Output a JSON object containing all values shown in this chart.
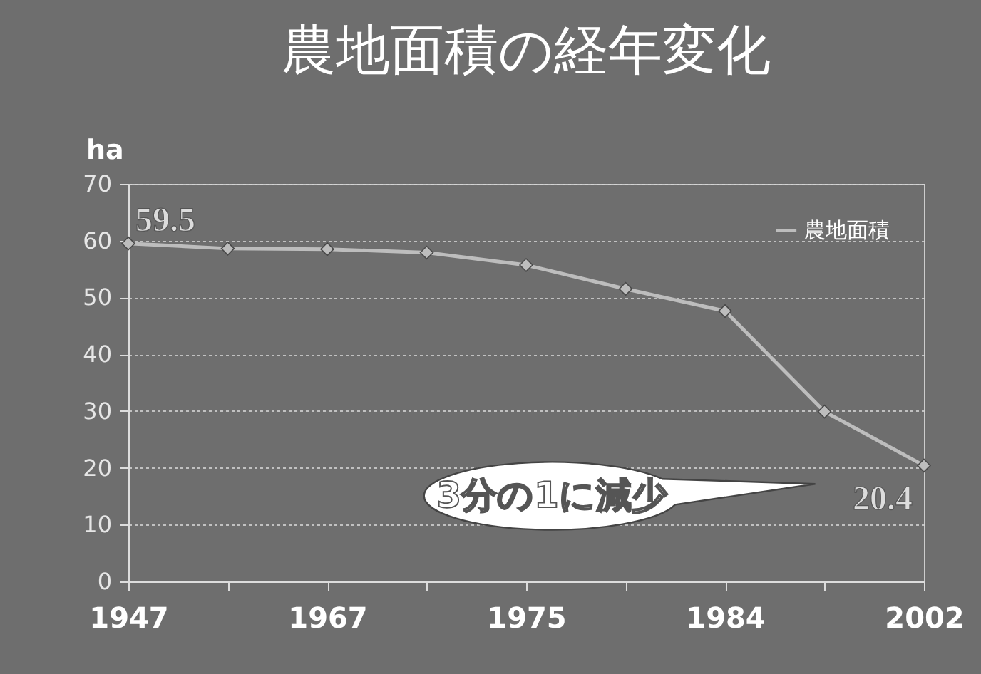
{
  "chart_data": {
    "type": "line",
    "title": "農地面積の経年変化",
    "ylabel": "ha",
    "categories": [
      "1947",
      null,
      "1967",
      null,
      "1975",
      null,
      "1984",
      null,
      "2002"
    ],
    "series": [
      {
        "name": "農地面積",
        "color": "#bdbdbd",
        "values": [
          59.5,
          58.6,
          58.5,
          57.9,
          55.7,
          51.5,
          47.6,
          29.9,
          20.4
        ],
        "value_labels": [
          "59.5",
          null,
          null,
          null,
          null,
          null,
          null,
          null,
          "20.4"
        ]
      }
    ],
    "ylim": [
      0,
      70
    ],
    "yticks": [
      0,
      10,
      20,
      30,
      40,
      50,
      60,
      70
    ],
    "grid": "y",
    "legend": "top right",
    "marker": "diamond",
    "annotations": [
      "3分の1に減少"
    ]
  }
}
